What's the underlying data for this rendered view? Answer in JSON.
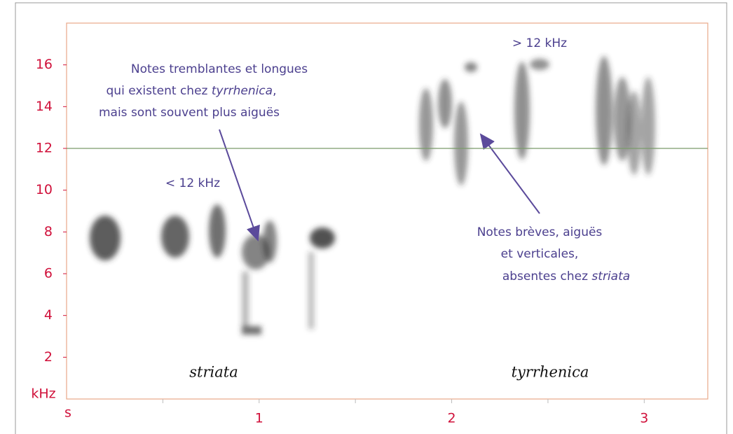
{
  "chart_data": {
    "type": "spectrogram",
    "x_label": "s",
    "y_label": "kHz",
    "xlim": [
      0,
      3.33
    ],
    "ylim": [
      0,
      18
    ],
    "xticks": [
      1,
      2,
      3
    ],
    "xminor_ticks": [
      0.5,
      1.5,
      2.5
    ],
    "yticks": [
      2,
      4,
      6,
      8,
      10,
      12,
      14,
      16
    ],
    "reference_line": {
      "value": 12,
      "color": "#7a9a6a"
    },
    "tick_color": "#d0103a",
    "annotations": [
      {
        "lines": [
          [
            "Notes tremblantes et longues"
          ],
          [
            "qui existent chez ",
            "tyrrhenica",
            ","
          ],
          [
            "mais sont souvent plus aiguës"
          ]
        ]
      },
      {
        "lines": [
          [
            "Notes brèves, aiguës"
          ],
          [
            "et verticales,"
          ],
          [
            "absentes chez ",
            "striata"
          ]
        ]
      },
      {
        "lines": [
          [
            "< 12 kHz"
          ]
        ]
      },
      {
        "lines": [
          [
            "> 12 kHz"
          ]
        ]
      }
    ],
    "species": [
      "striata",
      "tyrrhenica"
    ]
  }
}
